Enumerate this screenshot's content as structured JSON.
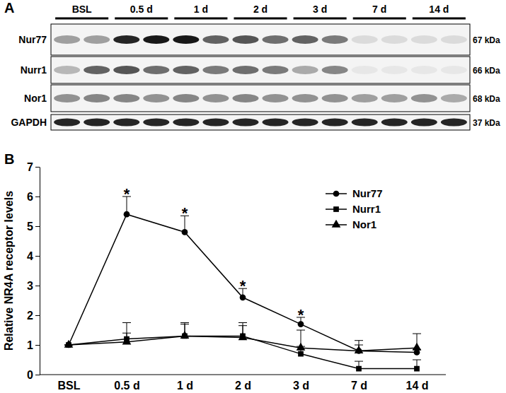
{
  "panel_labels": [
    "A",
    "B"
  ],
  "blot": {
    "groups": [
      "BSL",
      "0.5 d",
      "1 d",
      "2 d",
      "3 d",
      "7 d",
      "14 d"
    ],
    "rows": [
      {
        "name": "Nur77",
        "size": "67 kDa",
        "bands": [
          0.35,
          0.35,
          0.85,
          0.9,
          0.9,
          0.6,
          0.65,
          0.55,
          0.6,
          0.5,
          0.1,
          0.1,
          0.1,
          0.1
        ]
      },
      {
        "name": "Nurr1",
        "size": "66 kDa",
        "bands": [
          0.25,
          0.6,
          0.65,
          0.55,
          0.6,
          0.5,
          0.55,
          0.5,
          0.3,
          0.45,
          0.05,
          0.05,
          0.05,
          0.05
        ]
      },
      {
        "name": "Nor1",
        "size": "68 kDa",
        "bands": [
          0.4,
          0.45,
          0.45,
          0.4,
          0.45,
          0.4,
          0.45,
          0.4,
          0.4,
          0.4,
          0.35,
          0.35,
          0.4,
          0.3
        ]
      },
      {
        "name": "GAPDH",
        "size": "37 kDa",
        "bands": [
          0.85,
          0.85,
          0.85,
          0.85,
          0.85,
          0.85,
          0.85,
          0.85,
          0.85,
          0.85,
          0.85,
          0.85,
          0.85,
          0.85
        ]
      }
    ]
  },
  "chart_data": {
    "type": "line",
    "y_label": "Relative NR4A receptor levels",
    "categories": [
      "BSL",
      "0.5 d",
      "1 d",
      "2 d",
      "3 d",
      "7 d",
      "14 d"
    ],
    "series": [
      {
        "name": "Nur77",
        "color": "#000000",
        "marker": "circle",
        "values": [
          1,
          5.4,
          4.8,
          2.6,
          1.7,
          0.8,
          0.75
        ],
        "errors": [
          0,
          0.6,
          0.55,
          0.3,
          0.23,
          0.35,
          0.1
        ]
      },
      {
        "name": "Nurr1",
        "color": "#000000",
        "marker": "square",
        "values": [
          1,
          1.2,
          1.3,
          1.3,
          0.7,
          0.2,
          0.2
        ],
        "errors": [
          0,
          0.55,
          0.45,
          0.45,
          0.25,
          0.25,
          0.3
        ]
      },
      {
        "name": "Nor1",
        "color": "#000000",
        "marker": "triangle",
        "values": [
          1,
          1.1,
          1.3,
          1.25,
          0.9,
          0.8,
          0.9
        ],
        "errors": [
          0,
          0.3,
          0.4,
          0.4,
          0.6,
          0.2,
          0.48
        ]
      }
    ],
    "annotations": [
      {
        "text": "*",
        "x": "0.5 d",
        "y": 6.15
      },
      {
        "text": "*",
        "x": "1 d",
        "y": 5.5
      },
      {
        "text": "*",
        "x": "2 d",
        "y": 3.05
      },
      {
        "text": "*",
        "x": "3 d",
        "y": 2.08
      }
    ],
    "ylim": [
      0,
      7
    ],
    "yticks": [
      0,
      1,
      2,
      3,
      4,
      5,
      6,
      7
    ],
    "grid": false,
    "legend": "top-right"
  }
}
